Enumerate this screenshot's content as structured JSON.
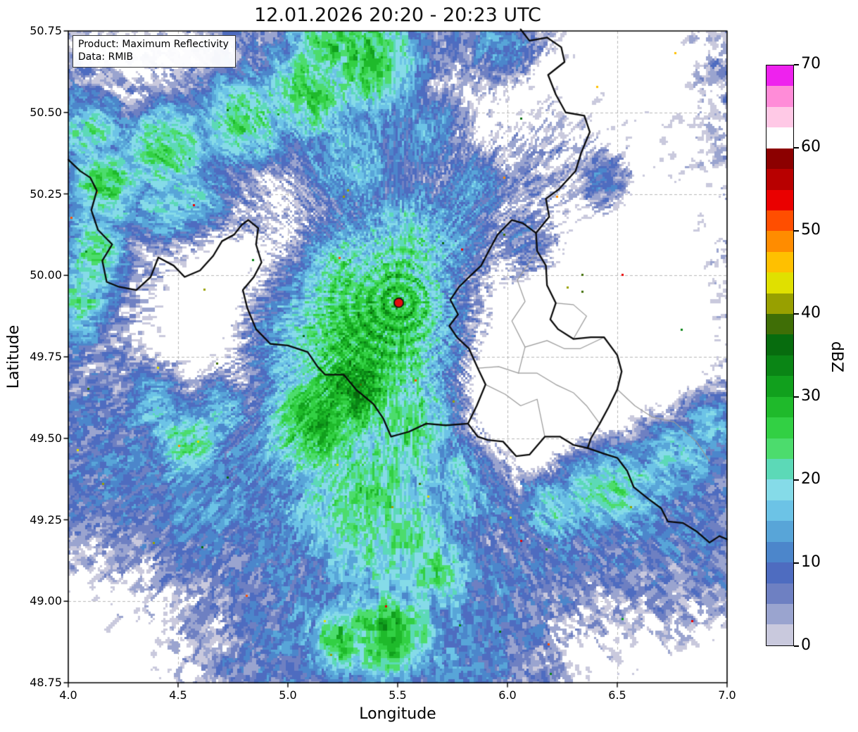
{
  "chart_data": {
    "type": "heatmap",
    "title": "12.01.2026 20:20 - 20:23 UTC",
    "xlabel": "Longitude",
    "ylabel": "Latitude",
    "xlim": [
      4.0,
      7.0
    ],
    "ylim": [
      48.75,
      50.75
    ],
    "grid": true,
    "xticks": [
      4.0,
      4.5,
      5.0,
      5.5,
      6.0,
      6.5,
      7.0
    ],
    "xtick_labels": [
      "4.0",
      "4.5",
      "5.0",
      "5.5",
      "6.0",
      "6.5",
      "7.0"
    ],
    "yticks": [
      48.75,
      49.0,
      49.25,
      49.5,
      49.75,
      50.0,
      50.25,
      50.5,
      50.75
    ],
    "ytick_labels": [
      "48.75",
      "49.00",
      "49.25",
      "49.50",
      "49.75",
      "50.00",
      "50.25",
      "50.50",
      "50.75"
    ],
    "annotation": {
      "line1": "Product: Maximum Reflectivity",
      "line2": "Data: RMIB"
    },
    "colorbar": {
      "label": "dBZ",
      "vmin": 0,
      "vmax": 70,
      "ticks": [
        0,
        10,
        20,
        30,
        40,
        50,
        60,
        70
      ],
      "tick_labels": [
        "0",
        "10",
        "20",
        "30",
        "40",
        "50",
        "60",
        "70"
      ],
      "band_step": 2.5,
      "colors": [
        "#c9c9dd",
        "#9aa4cf",
        "#6e80c2",
        "#4e6cc0",
        "#4c86cb",
        "#58a5d8",
        "#6cc3e6",
        "#85dbe8",
        "#5cd9b7",
        "#4cdc6d",
        "#32d044",
        "#1fba2b",
        "#11a01d",
        "#0a8515",
        "#076c0e",
        "#3f6e06",
        "#98a000",
        "#e0e000",
        "#ffc000",
        "#ff8c00",
        "#ff4e00",
        "#ea0000",
        "#b80000",
        "#8c0000",
        "#ffffff",
        "#ffc9e6",
        "#ff8cd8",
        "#ee22ee"
      ]
    },
    "radar_site": {
      "lon": 5.505,
      "lat": 49.916,
      "marker": "red-dot",
      "marker_color": "#e01010"
    },
    "grid_color": "#b8b8b8",
    "border_color_black": "#0a0a0a",
    "border_color_gray": "#999999",
    "cell_format": [
      "lon",
      "lat",
      "sigma_lon",
      "sigma_lat",
      "peak_dbz"
    ],
    "precipitation_cells": [
      [
        5.38,
        49.8,
        0.42,
        0.3,
        29
      ],
      [
        5.3,
        49.66,
        0.22,
        0.16,
        33
      ],
      [
        5.5,
        49.88,
        0.25,
        0.22,
        30
      ],
      [
        5.14,
        49.56,
        0.22,
        0.16,
        31
      ],
      [
        5.6,
        49.55,
        0.25,
        0.22,
        26
      ],
      [
        5.24,
        49.94,
        0.22,
        0.2,
        26
      ],
      [
        5.0,
        49.84,
        0.25,
        0.22,
        22
      ],
      [
        5.55,
        50.05,
        0.22,
        0.18,
        24
      ],
      [
        5.35,
        49.35,
        0.3,
        0.25,
        24
      ],
      [
        5.5,
        49.2,
        0.3,
        0.22,
        22
      ],
      [
        5.3,
        49.65,
        0.85,
        0.6,
        15
      ],
      [
        4.55,
        49.4,
        0.55,
        0.4,
        13
      ],
      [
        5.55,
        48.95,
        0.8,
        0.3,
        13
      ],
      [
        6.45,
        49.25,
        0.6,
        0.4,
        13
      ],
      [
        4.9,
        50.35,
        0.9,
        0.4,
        12
      ],
      [
        6.6,
        50.4,
        0.45,
        0.35,
        11
      ],
      [
        6.9,
        49.95,
        0.3,
        0.4,
        10
      ],
      [
        4.25,
        50.55,
        0.45,
        0.4,
        11
      ],
      [
        6.15,
        50.35,
        0.4,
        0.35,
        11
      ],
      [
        4.18,
        50.28,
        0.16,
        0.12,
        25
      ],
      [
        4.45,
        50.4,
        0.2,
        0.13,
        26
      ],
      [
        4.8,
        50.47,
        0.22,
        0.13,
        25
      ],
      [
        5.12,
        50.56,
        0.2,
        0.14,
        26
      ],
      [
        5.38,
        50.66,
        0.22,
        0.15,
        28
      ],
      [
        5.2,
        50.7,
        0.18,
        0.12,
        26
      ],
      [
        4.55,
        50.22,
        0.25,
        0.12,
        22
      ],
      [
        4.1,
        50.45,
        0.15,
        0.12,
        22
      ],
      [
        4.13,
        50.05,
        0.12,
        0.12,
        24
      ],
      [
        4.06,
        49.92,
        0.1,
        0.12,
        22
      ],
      [
        5.65,
        50.45,
        0.18,
        0.14,
        18
      ],
      [
        5.85,
        50.28,
        0.15,
        0.12,
        18
      ],
      [
        5.45,
        48.9,
        0.22,
        0.12,
        28
      ],
      [
        5.25,
        48.88,
        0.15,
        0.1,
        26
      ],
      [
        5.65,
        49.1,
        0.2,
        0.14,
        22
      ],
      [
        6.42,
        49.38,
        0.28,
        0.14,
        29
      ],
      [
        6.22,
        49.32,
        0.18,
        0.12,
        26
      ],
      [
        6.7,
        49.47,
        0.22,
        0.13,
        24
      ],
      [
        6.9,
        49.55,
        0.15,
        0.12,
        20
      ],
      [
        4.55,
        49.52,
        0.16,
        0.12,
        26
      ],
      [
        4.42,
        49.62,
        0.14,
        0.11,
        23
      ],
      [
        4.68,
        49.6,
        0.13,
        0.1,
        24
      ],
      [
        6.1,
        50.08,
        0.15,
        0.12,
        18
      ],
      [
        6.45,
        50.3,
        0.12,
        0.1,
        21
      ],
      [
        5.9,
        50.68,
        0.25,
        0.15,
        14
      ],
      [
        5.98,
        50.7,
        0.15,
        0.1,
        23
      ],
      [
        6.95,
        50.6,
        0.15,
        0.25,
        12
      ],
      [
        5.85,
        49.4,
        0.22,
        0.15,
        24
      ],
      [
        4.85,
        50.18,
        0.18,
        0.1,
        18
      ],
      [
        5.25,
        50.35,
        0.25,
        0.15,
        18
      ],
      [
        5.75,
        50.1,
        0.2,
        0.15,
        18
      ]
    ],
    "dry_slots": [
      [
        6.18,
        49.75,
        0.3,
        0.26,
        -20
      ],
      [
        6.05,
        49.55,
        0.2,
        0.15,
        -14
      ],
      [
        4.6,
        49.75,
        0.22,
        0.16,
        -12
      ],
      [
        4.72,
        50.0,
        0.22,
        0.15,
        -13
      ],
      [
        6.6,
        50.62,
        0.3,
        0.22,
        -14
      ],
      [
        6.75,
        50.05,
        0.28,
        0.3,
        -12
      ],
      [
        4.2,
        48.9,
        0.3,
        0.22,
        -10
      ],
      [
        6.55,
        48.85,
        0.3,
        0.2,
        -10
      ],
      [
        5.9,
        50.55,
        0.25,
        0.2,
        -10
      ],
      [
        4.3,
        50.68,
        0.25,
        0.15,
        -10
      ],
      [
        4.95,
        50.22,
        0.18,
        0.12,
        -10
      ],
      [
        6.6,
        49.8,
        0.25,
        0.2,
        -12
      ]
    ],
    "borders_black": [
      [
        [
          4.0,
          50.355
        ],
        [
          4.055,
          50.32
        ],
        [
          4.1,
          50.3
        ],
        [
          4.13,
          50.26
        ],
        [
          4.105,
          50.2
        ],
        [
          4.135,
          50.14
        ],
        [
          4.2,
          50.095
        ],
        [
          4.155,
          50.045
        ],
        [
          4.175,
          49.98
        ],
        [
          4.23,
          49.965
        ],
        [
          4.31,
          49.955
        ],
        [
          4.375,
          49.995
        ],
        [
          4.41,
          50.055
        ],
        [
          4.48,
          50.03
        ],
        [
          4.53,
          49.995
        ],
        [
          4.6,
          50.015
        ],
        [
          4.66,
          50.06
        ],
        [
          4.7,
          50.105
        ],
        [
          4.755,
          50.125
        ],
        [
          4.79,
          50.155
        ],
        [
          4.82,
          50.17
        ],
        [
          4.865,
          50.145
        ],
        [
          4.855,
          50.095
        ],
        [
          4.88,
          50.04
        ],
        [
          4.845,
          49.995
        ],
        [
          4.795,
          49.955
        ],
        [
          4.815,
          49.9
        ],
        [
          4.855,
          49.835
        ],
        [
          4.92,
          49.79
        ],
        [
          5.0,
          49.785
        ],
        [
          5.09,
          49.765
        ],
        [
          5.135,
          49.72
        ],
        [
          5.17,
          49.695
        ],
        [
          5.255,
          49.695
        ],
        [
          5.31,
          49.65
        ],
        [
          5.39,
          49.605
        ],
        [
          5.435,
          49.56
        ],
        [
          5.47,
          49.505
        ],
        [
          5.55,
          49.52
        ],
        [
          5.63,
          49.545
        ],
        [
          5.72,
          49.54
        ],
        [
          5.82,
          49.545
        ]
      ],
      [
        [
          5.82,
          49.545
        ],
        [
          5.86,
          49.6
        ],
        [
          5.9,
          49.665
        ],
        [
          5.865,
          49.715
        ],
        [
          5.825,
          49.775
        ],
        [
          5.77,
          49.81
        ],
        [
          5.735,
          49.845
        ],
        [
          5.775,
          49.88
        ],
        [
          5.74,
          49.925
        ],
        [
          5.78,
          49.965
        ],
        [
          5.825,
          49.995
        ],
        [
          5.88,
          50.03
        ],
        [
          5.915,
          50.075
        ],
        [
          5.955,
          50.125
        ],
        [
          6.02,
          50.17
        ],
        [
          6.07,
          50.16
        ],
        [
          6.13,
          50.13
        ]
      ],
      [
        [
          6.13,
          50.13
        ],
        [
          6.135,
          50.075
        ],
        [
          6.175,
          50.03
        ],
        [
          6.18,
          49.97
        ],
        [
          6.22,
          49.915
        ],
        [
          6.195,
          49.865
        ],
        [
          6.23,
          49.835
        ],
        [
          6.3,
          49.805
        ],
        [
          6.38,
          49.81
        ],
        [
          6.44,
          49.81
        ],
        [
          6.5,
          49.755
        ],
        [
          6.52,
          49.705
        ],
        [
          6.5,
          49.65
        ],
        [
          6.46,
          49.595
        ],
        [
          6.42,
          49.545
        ],
        [
          6.38,
          49.5
        ],
        [
          6.365,
          49.47
        ]
      ],
      [
        [
          6.365,
          49.47
        ],
        [
          6.3,
          49.48
        ],
        [
          6.24,
          49.505
        ],
        [
          6.17,
          49.505
        ],
        [
          6.1,
          49.45
        ],
        [
          6.04,
          49.445
        ],
        [
          5.98,
          49.49
        ],
        [
          5.91,
          49.495
        ],
        [
          5.865,
          49.505
        ],
        [
          5.82,
          49.545
        ]
      ],
      [
        [
          6.13,
          50.13
        ],
        [
          6.19,
          50.18
        ],
        [
          6.175,
          50.235
        ],
        [
          6.235,
          50.265
        ],
        [
          6.31,
          50.32
        ],
        [
          6.335,
          50.375
        ],
        [
          6.375,
          50.44
        ],
        [
          6.35,
          50.49
        ],
        [
          6.265,
          50.5
        ],
        [
          6.22,
          50.555
        ],
        [
          6.185,
          50.615
        ],
        [
          6.26,
          50.655
        ],
        [
          6.245,
          50.7
        ],
        [
          6.18,
          50.73
        ],
        [
          6.1,
          50.72
        ],
        [
          6.06,
          50.755
        ]
      ],
      [
        [
          6.365,
          49.47
        ],
        [
          6.43,
          49.455
        ],
        [
          6.5,
          49.44
        ],
        [
          6.545,
          49.4
        ],
        [
          6.575,
          49.35
        ],
        [
          6.64,
          49.315
        ],
        [
          6.7,
          49.285
        ],
        [
          6.73,
          49.245
        ],
        [
          6.8,
          49.24
        ],
        [
          6.86,
          49.215
        ],
        [
          6.92,
          49.18
        ],
        [
          6.965,
          49.2
        ],
        [
          7.0,
          49.19
        ]
      ]
    ],
    "borders_gray": [
      [
        [
          5.9,
          49.665
        ],
        [
          5.99,
          49.635
        ],
        [
          6.06,
          49.6
        ],
        [
          6.135,
          49.62
        ],
        [
          6.17,
          49.505
        ]
      ],
      [
        [
          5.865,
          49.715
        ],
        [
          5.96,
          49.72
        ],
        [
          6.05,
          49.7
        ],
        [
          6.135,
          49.7
        ],
        [
          6.22,
          49.665
        ],
        [
          6.3,
          49.64
        ],
        [
          6.36,
          49.6
        ],
        [
          6.42,
          49.545
        ]
      ],
      [
        [
          6.05,
          49.7
        ],
        [
          6.08,
          49.78
        ],
        [
          6.02,
          49.86
        ],
        [
          6.08,
          49.92
        ],
        [
          6.045,
          49.985
        ],
        [
          6.1,
          50.04
        ],
        [
          6.135,
          50.075
        ]
      ],
      [
        [
          6.08,
          49.78
        ],
        [
          6.18,
          49.8
        ],
        [
          6.26,
          49.775
        ],
        [
          6.33,
          49.775
        ],
        [
          6.44,
          49.81
        ]
      ],
      [
        [
          6.5,
          49.65
        ],
        [
          6.58,
          49.6
        ],
        [
          6.66,
          49.565
        ],
        [
          6.76,
          49.55
        ],
        [
          6.86,
          49.49
        ],
        [
          6.92,
          49.43
        ]
      ],
      [
        [
          6.22,
          49.915
        ],
        [
          6.3,
          49.91
        ],
        [
          6.36,
          49.875
        ],
        [
          6.3,
          49.805
        ]
      ]
    ]
  }
}
